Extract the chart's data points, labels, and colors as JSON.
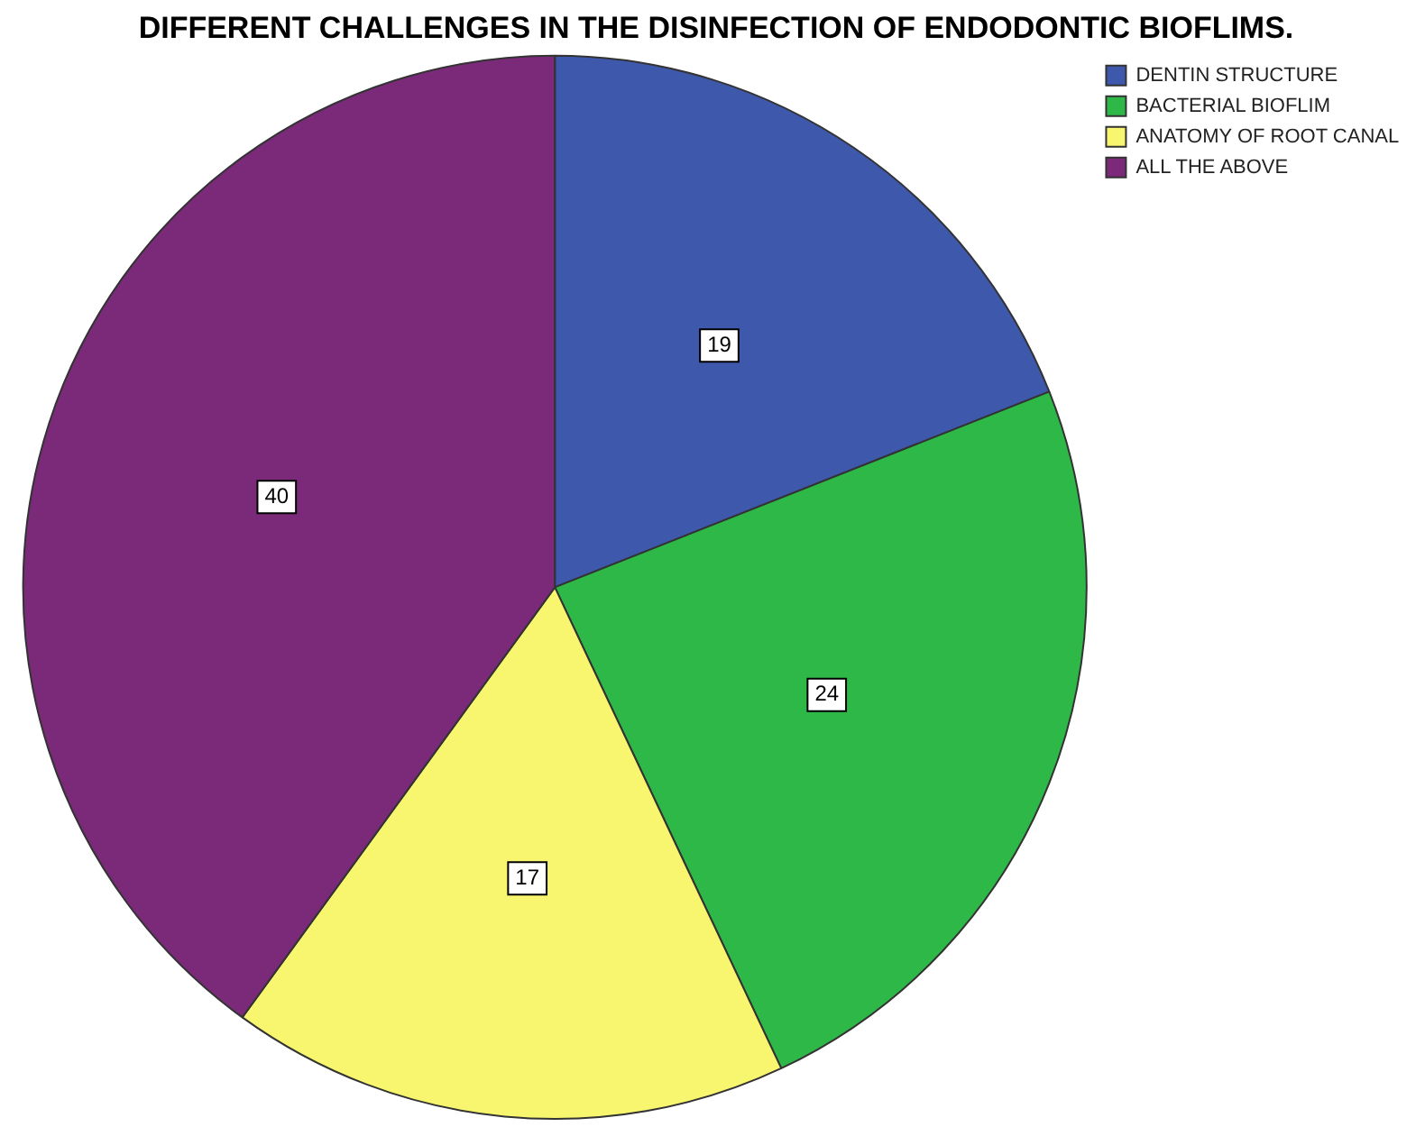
{
  "chart_data": {
    "type": "pie",
    "title": "DIFFERENT CHALLENGES IN THE DISINFECTION OF ENDODONTIC BIOFLIMS.",
    "categories": [
      "DENTIN STRUCTURE",
      "BACTERIAL BIOFLIM",
      "ANATOMY OF ROOT CANAL",
      "ALL THE ABOVE"
    ],
    "values": [
      19,
      24,
      17,
      40
    ],
    "colors": [
      "#3e58ac",
      "#2eb848",
      "#f8f56e",
      "#7b2a7a"
    ],
    "data_labels": true,
    "legend": "top right"
  }
}
